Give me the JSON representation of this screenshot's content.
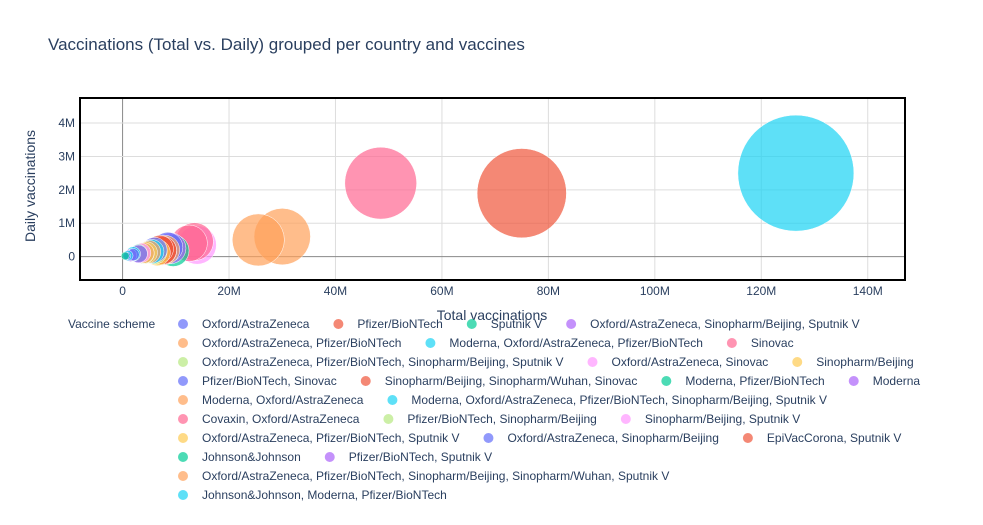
{
  "chart_data": {
    "type": "scatter",
    "subtype": "bubble",
    "title": "Vaccinations (Total vs. Daily) grouped per country and vaccines",
    "xlabel": "Total vaccinations",
    "ylabel": "Daily vaccinations",
    "xlim": [
      -8000000,
      147000000
    ],
    "ylim": [
      -700000,
      4750000
    ],
    "x_ticks": [
      0,
      20000000,
      40000000,
      60000000,
      80000000,
      100000000,
      120000000,
      140000000
    ],
    "x_tick_labels": [
      "0",
      "20M",
      "40M",
      "60M",
      "80M",
      "100M",
      "120M",
      "140M"
    ],
    "y_ticks": [
      0,
      1000000,
      2000000,
      3000000,
      4000000
    ],
    "y_tick_labels": [
      "0",
      "1M",
      "2M",
      "3M",
      "4M"
    ],
    "grid": true,
    "legend_title": "Vaccine scheme",
    "legend_position": "bottom",
    "series": [
      {
        "name": "Oxford/AstraZeneca",
        "color": "#636efa",
        "points": [
          {
            "x": 2000000,
            "y": 60000,
            "size": 1400000
          },
          {
            "x": 800000,
            "y": 20000,
            "size": 600000
          }
        ]
      },
      {
        "name": "Pfizer/BioNTech",
        "color": "#EF553B",
        "points": [
          {
            "x": 75000000,
            "y": 1900000,
            "size": 75000000
          },
          {
            "x": 7500000,
            "y": 170000,
            "size": 7500000
          }
        ]
      },
      {
        "name": "Sputnik V",
        "color": "#00cc96",
        "points": [
          {
            "x": 3000000,
            "y": 100000,
            "size": 3000000
          }
        ]
      },
      {
        "name": "Oxford/AstraZeneca, Sinopharm/Beijing, Sputnik V",
        "color": "#ab63fa",
        "points": [
          {
            "x": 9000000,
            "y": 250000,
            "size": 9000000
          }
        ]
      },
      {
        "name": "Oxford/AstraZeneca, Pfizer/BioNTech",
        "color": "#FFA15A",
        "points": [
          {
            "x": 30000000,
            "y": 600000,
            "size": 30000000
          },
          {
            "x": 25500000,
            "y": 500000,
            "size": 25500000
          },
          {
            "x": 8000000,
            "y": 200000,
            "size": 8000000
          }
        ]
      },
      {
        "name": "Moderna, Oxford/AstraZeneca, Pfizer/BioNTech",
        "color": "#19d3f3",
        "points": [
          {
            "x": 126500000,
            "y": 2500000,
            "size": 126500000
          },
          {
            "x": 2000000,
            "y": 80000,
            "size": 2000000
          }
        ]
      },
      {
        "name": "Sinovac",
        "color": "#FF6692",
        "points": [
          {
            "x": 48500000,
            "y": 2200000,
            "size": 48500000
          },
          {
            "x": 13500000,
            "y": 450000,
            "size": 13500000
          }
        ]
      },
      {
        "name": "Oxford/AstraZeneca, Pfizer/BioNTech, Sinopharm/Beijing, Sputnik V",
        "color": "#B6E880",
        "points": [
          {
            "x": 6000000,
            "y": 150000,
            "size": 6000000
          }
        ]
      },
      {
        "name": "Oxford/AstraZeneca, Sinovac",
        "color": "#FF97FF",
        "points": [
          {
            "x": 14000000,
            "y": 350000,
            "size": 14000000
          }
        ]
      },
      {
        "name": "Sinopharm/Beijing",
        "color": "#FECB52",
        "points": [
          {
            "x": 6500000,
            "y": 120000,
            "size": 6500000
          }
        ]
      },
      {
        "name": "Pfizer/BioNTech, Sinovac",
        "color": "#636efa",
        "points": [
          {
            "x": 8500000,
            "y": 280000,
            "size": 8500000
          }
        ]
      },
      {
        "name": "Sinopharm/Beijing, Sinopharm/Wuhan, Sinovac",
        "color": "#EF553B",
        "points": [
          {
            "x": 7000000,
            "y": 230000,
            "size": 7000000
          }
        ]
      },
      {
        "name": "Moderna, Pfizer/BioNTech",
        "color": "#00cc96",
        "points": [
          {
            "x": 9500000,
            "y": 180000,
            "size": 9500000
          }
        ]
      },
      {
        "name": "Moderna",
        "color": "#ab63fa",
        "points": [
          {
            "x": 1500000,
            "y": 40000,
            "size": 1500000
          }
        ]
      },
      {
        "name": "Moderna, Oxford/AstraZeneca",
        "color": "#FFA15A",
        "points": [
          {
            "x": 5000000,
            "y": 140000,
            "size": 5000000
          }
        ]
      },
      {
        "name": "Moderna, Oxford/AstraZeneca, Pfizer/BioNTech, Sinopharm/Beijing, Sputnik V",
        "color": "#19d3f3",
        "points": [
          {
            "x": 5500000,
            "y": 150000,
            "size": 5500000
          }
        ]
      },
      {
        "name": "Covaxin, Oxford/AstraZeneca",
        "color": "#FF6692",
        "points": [
          {
            "x": 12500000,
            "y": 400000,
            "size": 12500000
          }
        ]
      },
      {
        "name": "Pfizer/BioNTech, Sinopharm/Beijing",
        "color": "#B6E880",
        "points": [
          {
            "x": 4000000,
            "y": 90000,
            "size": 4000000
          }
        ]
      },
      {
        "name": "Sinopharm/Beijing, Sputnik V",
        "color": "#FF97FF",
        "points": [
          {
            "x": 3500000,
            "y": 110000,
            "size": 3500000
          }
        ]
      },
      {
        "name": "Oxford/AstraZeneca, Pfizer/BioNTech, Sputnik V",
        "color": "#FECB52",
        "points": [
          {
            "x": 4500000,
            "y": 120000,
            "size": 4500000
          }
        ]
      },
      {
        "name": "Oxford/AstraZeneca, Sinopharm/Beijing",
        "color": "#636efa",
        "points": [
          {
            "x": 6000000,
            "y": 200000,
            "size": 6000000
          }
        ]
      },
      {
        "name": "EpiVacCorona, Sputnik V",
        "color": "#EF553B",
        "points": [
          {
            "x": 7500000,
            "y": 190000,
            "size": 7500000
          }
        ]
      },
      {
        "name": "Johnson&Johnson",
        "color": "#00cc96",
        "points": [
          {
            "x": 500000,
            "y": 20000,
            "size": 500000
          }
        ]
      },
      {
        "name": "Pfizer/BioNTech, Sputnik V",
        "color": "#ab63fa",
        "points": [
          {
            "x": 3000000,
            "y": 80000,
            "size": 3000000
          }
        ]
      },
      {
        "name": "Oxford/AstraZeneca, Pfizer/BioNTech, Sinopharm/Beijing, Sinopharm/Wuhan, Sputnik V",
        "color": "#FFA15A",
        "points": [
          {
            "x": 4000000,
            "y": 110000,
            "size": 4000000
          }
        ]
      },
      {
        "name": "Johnson&Johnson, Moderna, Pfizer/BioNTech",
        "color": "#19d3f3",
        "points": [
          {
            "x": 1000000,
            "y": 30000,
            "size": 1000000
          }
        ]
      }
    ]
  }
}
